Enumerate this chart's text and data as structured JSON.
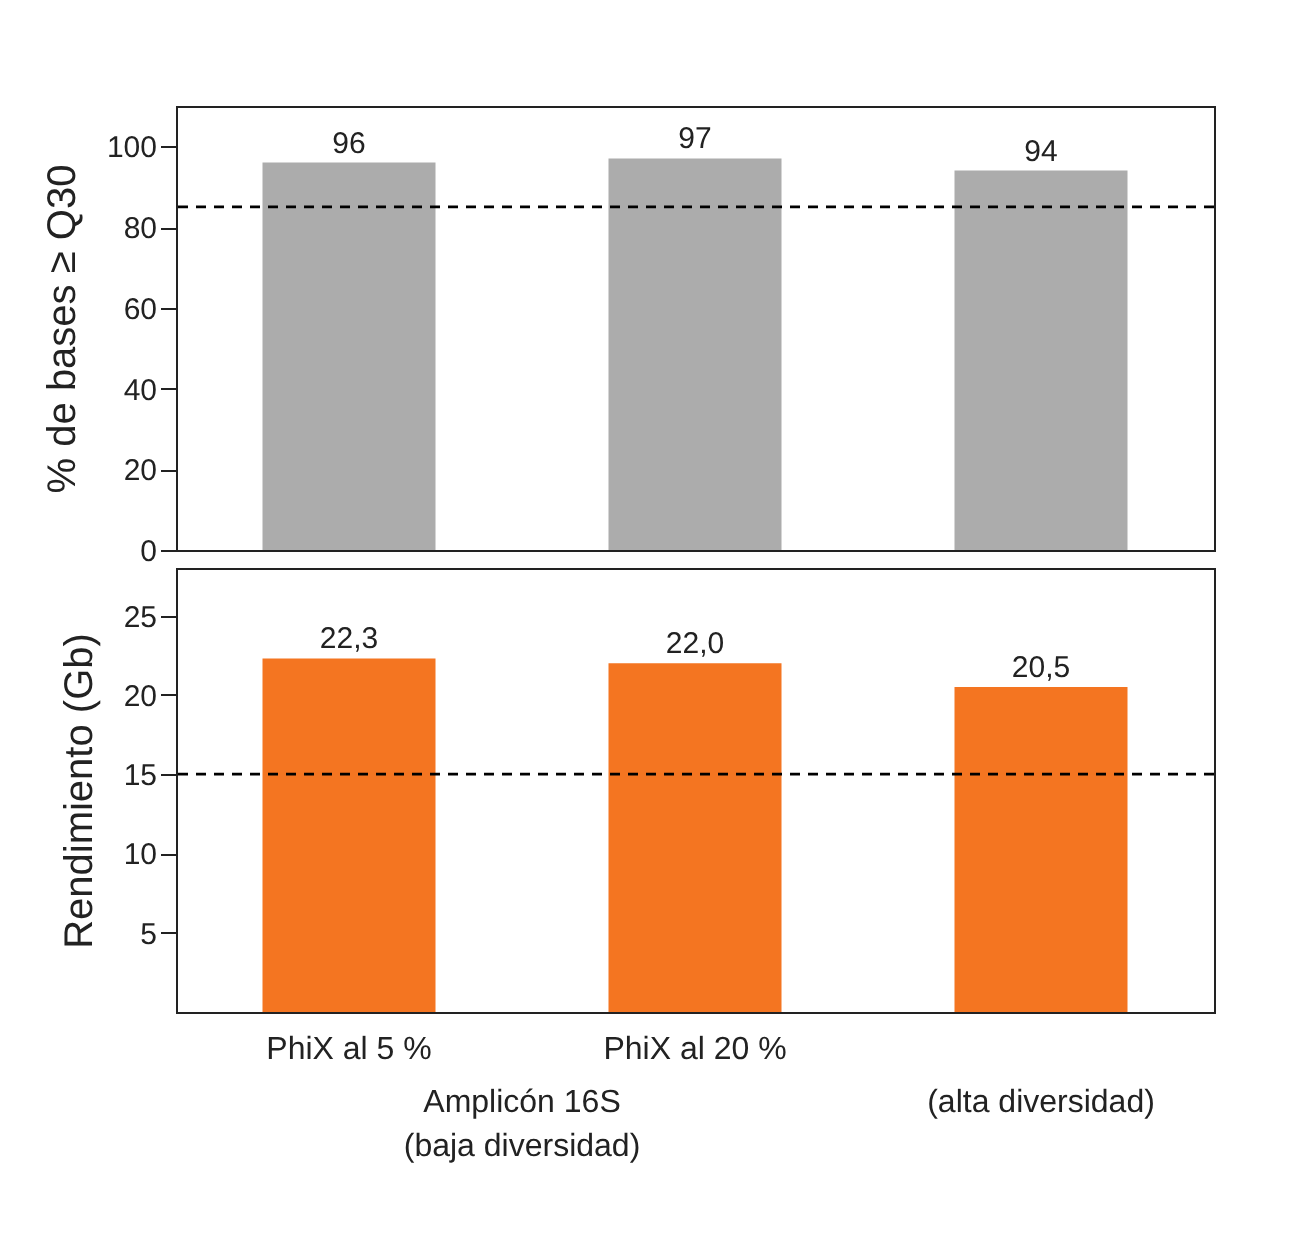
{
  "chart_data": [
    {
      "type": "bar",
      "ylabel": "% de bases ≥ Q30",
      "values": [
        96,
        97,
        94
      ],
      "color": "#acacac",
      "ylim": [
        0,
        110
      ],
      "yticks": [
        0,
        20,
        40,
        60,
        80,
        100
      ],
      "data_labels": true,
      "tick_labels": "y",
      "ref_lines": [
        {
          "axis": "y",
          "value": 85,
          "line_style": "dashed"
        }
      ]
    },
    {
      "type": "bar",
      "ylabel": "Rendimiento (Gb)",
      "categories": [
        "PhiX al 5 %",
        "PhiX al 20 %",
        null
      ],
      "values": [
        22.3,
        22.0,
        20.5
      ],
      "value_labels": [
        "22,3",
        "22,0",
        "20,5"
      ],
      "color": "#f47521",
      "ylim": [
        0,
        28
      ],
      "yticks": [
        5,
        10,
        15,
        20,
        25
      ],
      "ref_lines": [
        {
          "axis": "y",
          "value": 15,
          "line_style": "dashed"
        }
      ],
      "annotations": [
        "Amplicón 16S\n(baja diversidad)",
        "(alta diversidad)"
      ]
    }
  ]
}
